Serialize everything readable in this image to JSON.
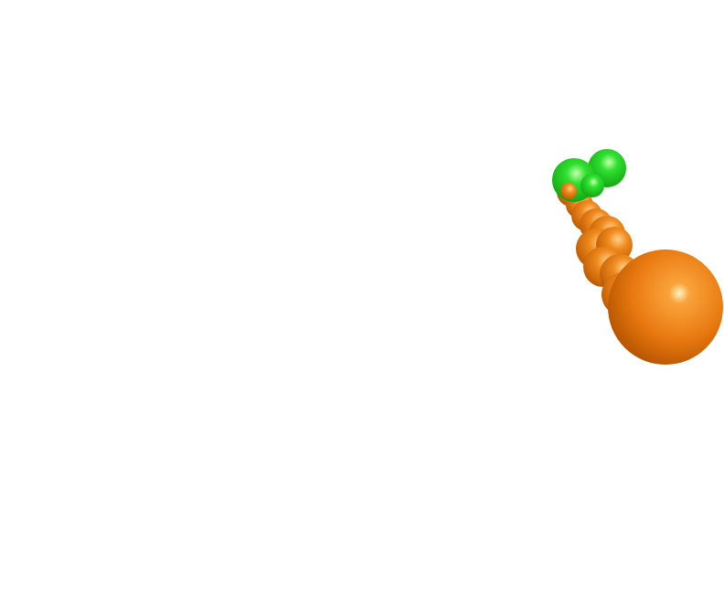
{
  "scene": {
    "background": "#ffffff",
    "subject": "molecular-surface-rendering",
    "colors": {
      "orange_base": "#e8780f",
      "orange_highlight": "#ffe2a0",
      "orange_shadow": "#8a3d00",
      "green_base": "#1ec81e",
      "green_highlight": "#c8ffb0",
      "green_shadow": "#0a6a0a"
    },
    "parts": [
      {
        "name": "large-sphere",
        "color_group": "orange"
      },
      {
        "name": "chain-segment",
        "color_group": "orange"
      },
      {
        "name": "terminal-cap",
        "color_group": "green"
      }
    ]
  }
}
